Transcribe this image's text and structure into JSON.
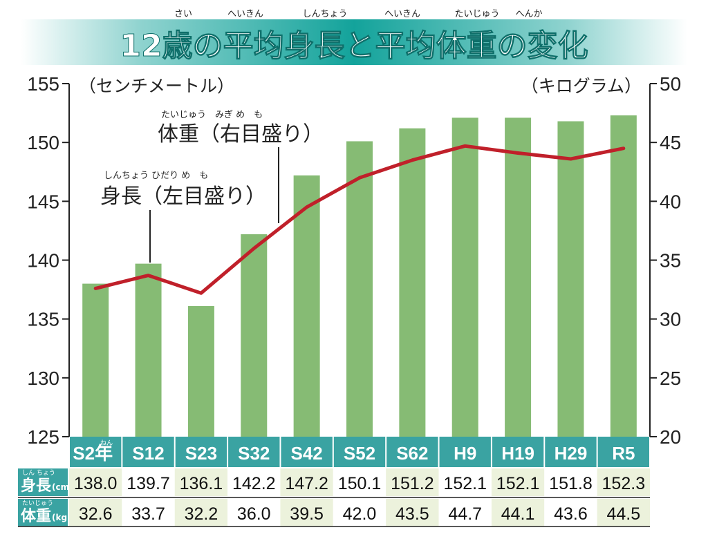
{
  "title": {
    "text": "12歳の平均身長と平均体重の変化",
    "ruby": [
      {
        "base": "歳",
        "reading": "さい"
      },
      {
        "base": "平均",
        "reading": "へいきん"
      },
      {
        "base": "身長",
        "reading": "しんちょう"
      },
      {
        "base": "平均",
        "reading": "へいきん"
      },
      {
        "base": "体重",
        "reading": "たいじゅう"
      },
      {
        "base": "変化",
        "reading": "へんか"
      }
    ]
  },
  "colors": {
    "bar": "#86bb74",
    "line": "#c0202a",
    "header": "#3aa3a2",
    "highlight": "#ecf2dc",
    "title_band": "#1aa7a0"
  },
  "chart_data": {
    "type": "bar+line",
    "title": "12歳の平均身長と平均体重の変化",
    "categories": [
      "S2年",
      "S12",
      "S23",
      "S32",
      "S42",
      "S52",
      "S62",
      "H9",
      "H19",
      "H29",
      "R5"
    ],
    "series": [
      {
        "name": "身長",
        "unit": "cm",
        "axis": "left",
        "kind": "bar",
        "values": [
          138.0,
          139.7,
          136.1,
          142.2,
          147.2,
          150.1,
          151.2,
          152.1,
          152.1,
          151.8,
          152.3
        ]
      },
      {
        "name": "体重",
        "unit": "kg",
        "axis": "right",
        "kind": "line",
        "values": [
          32.6,
          33.7,
          32.2,
          36.0,
          39.5,
          42.0,
          43.5,
          44.7,
          44.1,
          43.6,
          44.5
        ]
      }
    ],
    "left_axis": {
      "label": "（センチメートル）",
      "range": [
        125,
        155
      ],
      "ticks": [
        "125",
        "130",
        "135",
        "140",
        "145",
        "150",
        "155"
      ]
    },
    "right_axis": {
      "label": "（キログラム）",
      "range": [
        20,
        50
      ],
      "ticks": [
        "20",
        "25",
        "30",
        "35",
        "40",
        "45",
        "50"
      ]
    },
    "annotations": [
      {
        "text": "体重（右目盛り）",
        "ruby": "たいじゅう　みぎ め　も"
      },
      {
        "text": "身長（左目盛り）",
        "ruby": "しんちょう ひだり め　も"
      }
    ]
  },
  "table": {
    "row_height": {
      "label": "身長",
      "ruby": "しん ちょう",
      "unit": "(cm)",
      "values": [
        "138.0",
        "139.7",
        "136.1",
        "142.2",
        "147.2",
        "150.1",
        "151.2",
        "152.1",
        "152.1",
        "151.8",
        "152.3"
      ]
    },
    "row_weight": {
      "label": "体重",
      "ruby": "たいじゅう",
      "unit": "(kg)",
      "values": [
        "32.6",
        "33.7",
        "32.2",
        "36.0",
        "39.5",
        "42.0",
        "43.5",
        "44.7",
        "44.1",
        "43.6",
        "44.5"
      ]
    },
    "first_cat_ruby": "ねん",
    "highlight_columns": [
      0,
      2,
      4,
      6,
      8,
      10
    ]
  }
}
